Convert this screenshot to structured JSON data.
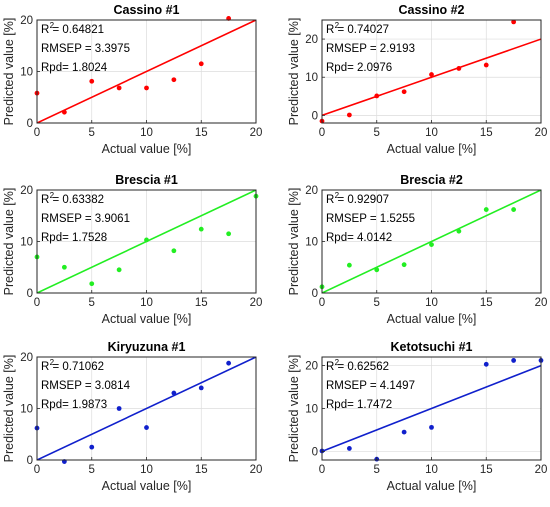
{
  "chart_data": [
    {
      "type": "scatter",
      "title": "Cassino #1",
      "xlabel": "Actual value [%]",
      "ylabel": "Predicted value [%]",
      "xlim": [
        0,
        20
      ],
      "ylim": [
        0,
        20
      ],
      "xticks": [
        "0",
        "5",
        "10",
        "15",
        "20"
      ],
      "yticks": [
        "0",
        "10",
        "20"
      ],
      "grid": true,
      "color": "#ff0000",
      "stats": [
        "R = 0.64821",
        "RMSEP = 3.3975",
        "Rpd= 1.8024"
      ],
      "fit_line": [
        [
          0,
          0
        ],
        [
          20,
          20
        ]
      ],
      "points": [
        [
          0,
          5.8
        ],
        [
          2.5,
          2.1
        ],
        [
          5,
          8.1
        ],
        [
          7.5,
          6.8
        ],
        [
          10,
          6.8
        ],
        [
          12.5,
          8.4
        ],
        [
          15,
          11.5
        ],
        [
          17.5,
          20.3
        ]
      ]
    },
    {
      "type": "scatter",
      "title": "Cassino #2",
      "xlabel": "Actual value [%]",
      "ylabel": "Predicted value [%]",
      "xlim": [
        0,
        20
      ],
      "ylim": [
        -2,
        25
      ],
      "xticks": [
        "0",
        "5",
        "10",
        "15",
        "20"
      ],
      "yticks": [
        "0",
        "10",
        "20"
      ],
      "grid": true,
      "color": "#ff0000",
      "stats": [
        "R = 0.74027",
        "RMSEP = 2.9193",
        "Rpd= 2.0976"
      ],
      "fit_line": [
        [
          0,
          0
        ],
        [
          20,
          20
        ]
      ],
      "points": [
        [
          0,
          -1.5
        ],
        [
          2.5,
          0.1
        ],
        [
          5,
          5.1
        ],
        [
          7.5,
          6.2
        ],
        [
          10,
          10.7
        ],
        [
          12.5,
          12.3
        ],
        [
          15,
          13.2
        ],
        [
          17.5,
          24.5
        ]
      ]
    },
    {
      "type": "scatter",
      "title": "Brescia #1",
      "xlabel": "Actual value [%]",
      "ylabel": "Predicted value [%]",
      "xlim": [
        0,
        20
      ],
      "ylim": [
        0,
        20
      ],
      "xticks": [
        "0",
        "5",
        "10",
        "15",
        "20"
      ],
      "yticks": [
        "0",
        "10",
        "20"
      ],
      "grid": true,
      "color": "#22ee22",
      "stats": [
        "R = 0.63382",
        "RMSEP = 3.9061",
        "Rpd= 1.7528"
      ],
      "fit_line": [
        [
          0,
          0
        ],
        [
          20,
          20
        ]
      ],
      "points": [
        [
          0,
          7.0
        ],
        [
          2.5,
          5.0
        ],
        [
          5,
          1.8
        ],
        [
          7.5,
          4.5
        ],
        [
          10,
          10.3
        ],
        [
          12.5,
          8.2
        ],
        [
          15,
          12.4
        ],
        [
          17.5,
          11.5
        ],
        [
          20,
          18.8
        ]
      ]
    },
    {
      "type": "scatter",
      "title": "Brescia #2",
      "xlabel": "Actual value [%]",
      "ylabel": "Predicted value [%]",
      "xlim": [
        0,
        20
      ],
      "ylim": [
        0,
        20
      ],
      "xticks": [
        "0",
        "5",
        "10",
        "15",
        "20"
      ],
      "yticks": [
        "0",
        "10",
        "20"
      ],
      "grid": true,
      "color": "#22ee22",
      "stats": [
        "R = 0.92907",
        "RMSEP = 1.5255",
        "Rpd= 4.0142"
      ],
      "fit_line": [
        [
          0,
          0
        ],
        [
          20,
          20
        ]
      ],
      "points": [
        [
          0,
          1.2
        ],
        [
          2.5,
          5.4
        ],
        [
          5,
          4.5
        ],
        [
          7.5,
          5.5
        ],
        [
          10,
          9.4
        ],
        [
          12.5,
          12.0
        ],
        [
          15,
          16.2
        ],
        [
          17.5,
          16.2
        ]
      ]
    },
    {
      "type": "scatter",
      "title": "Kiryuzuna #1",
      "xlabel": "Actual value [%]",
      "ylabel": "Predicted value [%]",
      "xlim": [
        0,
        20
      ],
      "ylim": [
        0,
        20
      ],
      "xticks": [
        "0",
        "5",
        "10",
        "15",
        "20"
      ],
      "yticks": [
        "0",
        "10",
        "20"
      ],
      "grid": true,
      "color": "#1020cc",
      "stats": [
        "R = 0.71062",
        "RMSEP = 3.0814",
        "Rpd= 1.9873"
      ],
      "fit_line": [
        [
          0,
          0
        ],
        [
          20,
          20
        ]
      ],
      "points": [
        [
          0,
          6.2
        ],
        [
          2.5,
          -0.3
        ],
        [
          5,
          2.5
        ],
        [
          7.5,
          10.0
        ],
        [
          10,
          6.3
        ],
        [
          12.5,
          13.0
        ],
        [
          15,
          14.0
        ],
        [
          17.5,
          18.8
        ]
      ]
    },
    {
      "type": "scatter",
      "title": "Ketotsuchi #1",
      "xlabel": "Actual value [%]",
      "ylabel": "Predicted value [%]",
      "xlim": [
        0,
        20
      ],
      "ylim": [
        -2,
        22
      ],
      "xticks": [
        "0",
        "5",
        "10",
        "15",
        "20"
      ],
      "yticks": [
        "0",
        "10",
        "20"
      ],
      "grid": true,
      "color": "#1020cc",
      "stats": [
        "R = 0.62562",
        "RMSEP = 4.1497",
        "Rpd= 1.7472"
      ],
      "fit_line": [
        [
          0,
          0
        ],
        [
          20,
          20
        ]
      ],
      "points": [
        [
          0,
          0.1
        ],
        [
          2.5,
          0.7
        ],
        [
          5,
          -1.8
        ],
        [
          7.5,
          4.5
        ],
        [
          10,
          5.6
        ],
        [
          15,
          20.3
        ],
        [
          17.5,
          21.2
        ],
        [
          20,
          21.2
        ]
      ]
    }
  ]
}
